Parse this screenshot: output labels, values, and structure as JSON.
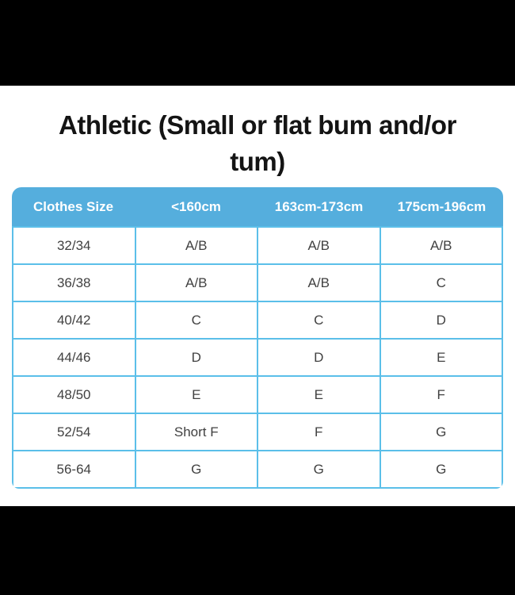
{
  "page": {
    "title": "Athletic (Small or flat bum and/or tum)"
  },
  "colors": {
    "letterbox": "#000000",
    "header_background": "#55aedd",
    "table_border": "#5bbfe9",
    "header_text": "#ffffff",
    "cell_text": "#414141",
    "title_text": "#141414"
  },
  "table": {
    "headers": [
      "Clothes Size",
      "<160cm",
      "163cm-173cm",
      "175cm-196cm"
    ],
    "rows": [
      [
        "32/34",
        "A/B",
        "A/B",
        "A/B"
      ],
      [
        "36/38",
        "A/B",
        "A/B",
        "C"
      ],
      [
        "40/42",
        "C",
        "C",
        "D"
      ],
      [
        "44/46",
        "D",
        "D",
        "E"
      ],
      [
        "48/50",
        "E",
        "E",
        "F"
      ],
      [
        "52/54",
        "Short F",
        "F",
        "G"
      ],
      [
        "56-64",
        "G",
        "G",
        "G"
      ]
    ]
  }
}
